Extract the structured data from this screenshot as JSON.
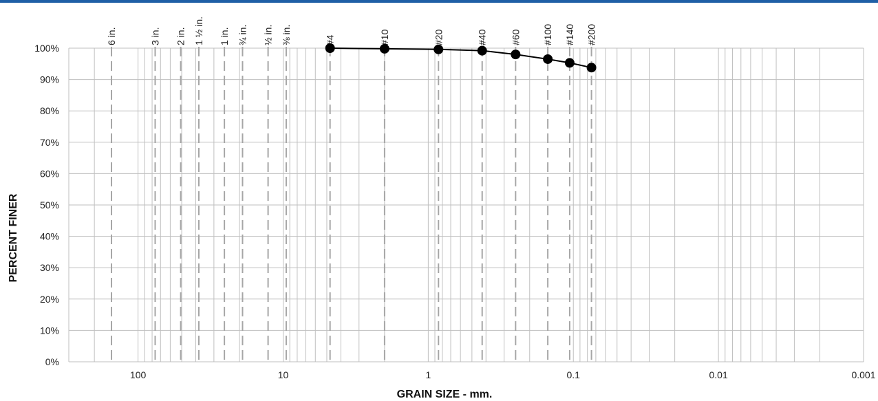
{
  "chart_data": {
    "type": "line",
    "title": "",
    "xlabel": "GRAIN SIZE - mm.",
    "ylabel": "PERCENT FINER",
    "x_scale": "log",
    "x_reversed": true,
    "xlim": [
      300,
      0.001
    ],
    "ylim": [
      0,
      100
    ],
    "y_ticks": [
      "0%",
      "10%",
      "20%",
      "30%",
      "40%",
      "50%",
      "60%",
      "70%",
      "80%",
      "90%",
      "100%"
    ],
    "x_tick_labels": [
      {
        "value": 100,
        "label": "100"
      },
      {
        "value": 10,
        "label": "10"
      },
      {
        "value": 1,
        "label": "1"
      },
      {
        "value": 0.1,
        "label": "0.1"
      },
      {
        "value": 0.01,
        "label": "0.01"
      },
      {
        "value": 0.001,
        "label": "0.001"
      }
    ],
    "grid": true,
    "sieves": [
      {
        "label": "6 in.",
        "size": 152.4
      },
      {
        "label": "3 in.",
        "size": 76.2
      },
      {
        "label": "2 in.",
        "size": 50.8
      },
      {
        "label": "1 ½ in.",
        "size": 38.1
      },
      {
        "label": "1 in.",
        "size": 25.4
      },
      {
        "label": "¾ in.",
        "size": 19.05
      },
      {
        "label": "½ in.",
        "size": 12.7
      },
      {
        "label": "⅜ in.",
        "size": 9.525
      },
      {
        "label": "#4",
        "size": 4.75
      },
      {
        "label": "#10",
        "size": 2.0
      },
      {
        "label": "#20",
        "size": 0.85
      },
      {
        "label": "#40",
        "size": 0.425
      },
      {
        "label": "#60",
        "size": 0.25
      },
      {
        "label": "#100",
        "size": 0.15
      },
      {
        "label": "#140",
        "size": 0.106
      },
      {
        "label": "#200",
        "size": 0.075
      }
    ],
    "series": [
      {
        "x": [
          4.75,
          2.0,
          0.85,
          0.425,
          0.25,
          0.15,
          0.106,
          0.075
        ],
        "y": [
          100,
          99.8,
          99.6,
          99.2,
          98.0,
          96.5,
          95.3,
          93.8
        ]
      }
    ],
    "colors": {
      "series": "#000000",
      "grid": "#bfbfbf",
      "sieve_line": "#a6a6a6"
    }
  }
}
